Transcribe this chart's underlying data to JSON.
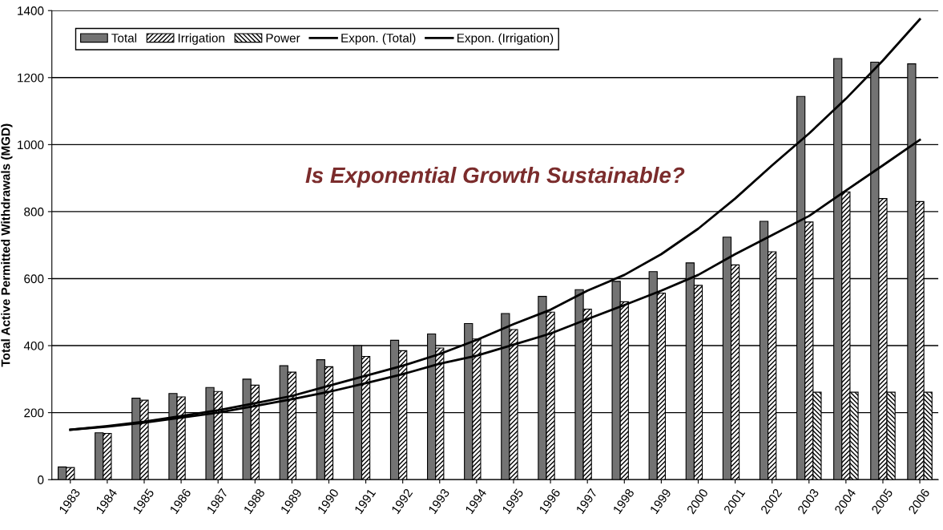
{
  "chart_data": {
    "type": "bar",
    "ylabel": "Total Active Permitted Withdrawals (MGD)",
    "categories": [
      "1983",
      "1984",
      "1985",
      "1986",
      "1987",
      "1988",
      "1989",
      "1990",
      "1991",
      "1992",
      "1993",
      "1994",
      "1995",
      "1996",
      "1997",
      "1998",
      "1999",
      "2000",
      "2001",
      "2002",
      "2003",
      "2004",
      "2005",
      "2006"
    ],
    "series": [
      {
        "name": "Total",
        "color": "#737373",
        "values": [
          38,
          140,
          243,
          257,
          275,
          300,
          340,
          358,
          400,
          416,
          435,
          466,
          496,
          547,
          567,
          592,
          621,
          647,
          724,
          771,
          1144,
          1257,
          1246,
          1241
        ]
      },
      {
        "name": "Irrigation",
        "color": "#000000",
        "values": [
          36,
          138,
          237,
          247,
          263,
          282,
          321,
          337,
          368,
          385,
          393,
          420,
          448,
          500,
          509,
          531,
          557,
          580,
          641,
          680,
          769,
          859,
          839,
          830
        ]
      },
      {
        "name": "Power",
        "color": "#000000",
        "values": [
          null,
          null,
          null,
          null,
          null,
          null,
          null,
          null,
          null,
          null,
          null,
          null,
          null,
          null,
          null,
          null,
          null,
          null,
          null,
          null,
          261,
          261,
          261,
          261
        ]
      },
      {
        "name": "Expon. (Total)",
        "type": "line",
        "color": "#000000",
        "values": [
          149,
          160,
          173,
          190,
          207,
          228,
          250,
          280,
          310,
          340,
          375,
          417,
          464,
          507,
          564,
          611,
          673,
          749,
          839,
          938,
          1033,
          1137,
          1251,
          1374
        ]
      },
      {
        "name": "Expon. (Irrigation)",
        "type": "line",
        "color": "#000000",
        "values": [
          149,
          158,
          170,
          185,
          200,
          220,
          240,
          262,
          288,
          315,
          346,
          370,
          403,
          436,
          479,
          521,
          564,
          611,
          673,
          730,
          787,
          863,
          938,
          1014
        ]
      }
    ],
    "ylim": [
      0,
      1400
    ],
    "yticks": [
      0,
      200,
      400,
      600,
      800,
      1000,
      1200,
      1400
    ],
    "grid": "y",
    "legend": "top left",
    "annotations": [
      "Is Exponential Growth Sustainable?"
    ]
  }
}
